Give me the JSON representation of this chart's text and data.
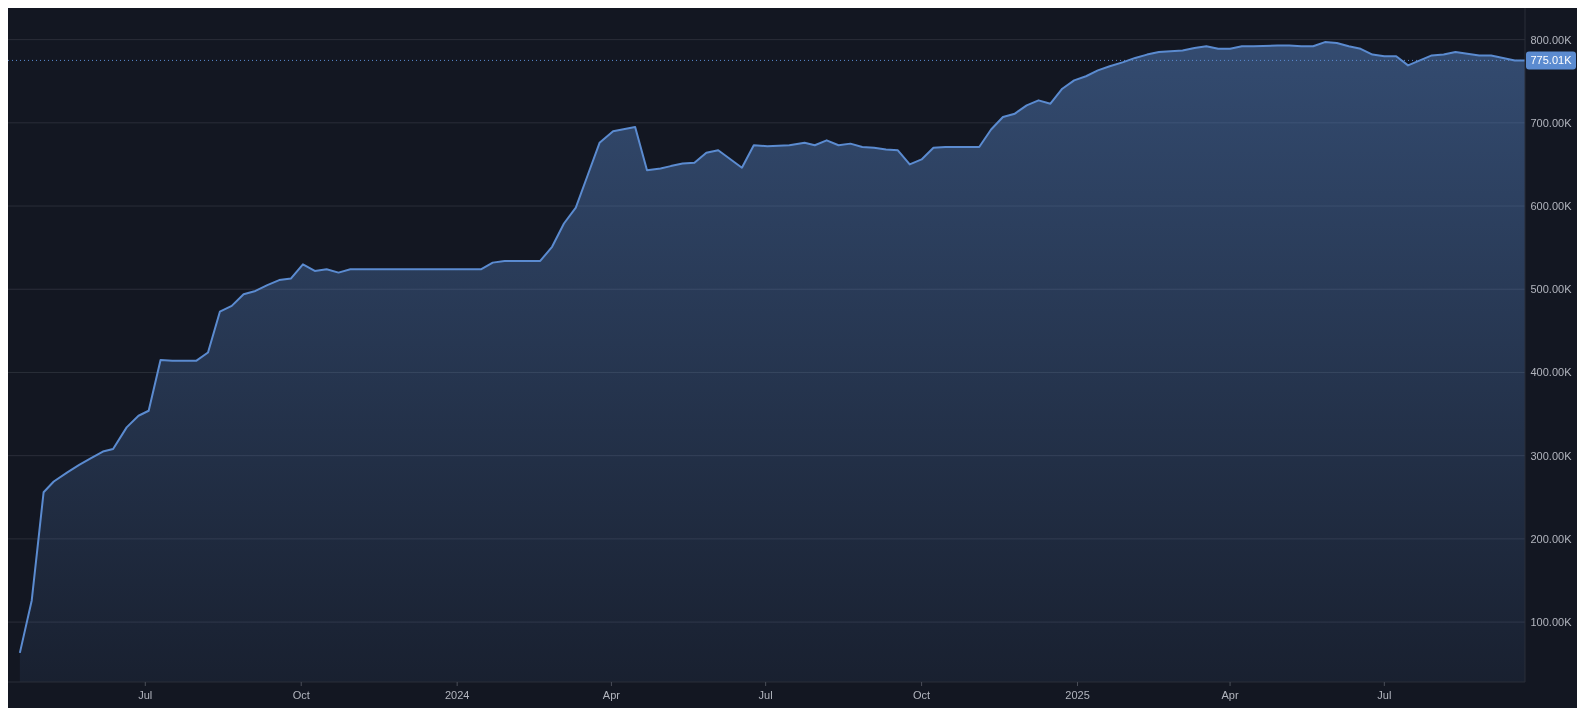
{
  "chart_data": {
    "type": "area",
    "x": [
      "2023-04-18",
      "2023-04-25",
      "2023-05-02",
      "2023-05-08",
      "2023-05-16",
      "2023-05-23",
      "2023-05-30",
      "2023-06-06",
      "2023-06-12",
      "2023-06-20",
      "2023-06-27",
      "2023-07-03",
      "2023-07-10",
      "2023-07-17",
      "2023-07-31",
      "2023-08-07",
      "2023-08-14",
      "2023-08-21",
      "2023-08-28",
      "2023-09-04",
      "2023-09-11",
      "2023-09-18",
      "2023-09-25",
      "2023-10-02",
      "2023-10-09",
      "2023-10-16",
      "2023-10-23",
      "2023-10-30",
      "2023-11-07",
      "2024-01-15",
      "2024-01-22",
      "2024-01-29",
      "2024-02-06",
      "2024-02-19",
      "2024-02-26",
      "2024-03-04",
      "2024-03-11",
      "2024-03-18",
      "2024-03-25",
      "2024-04-02",
      "2024-04-15",
      "2024-04-22",
      "2024-04-30",
      "2024-05-06",
      "2024-05-13",
      "2024-05-20",
      "2024-05-27",
      "2024-06-03",
      "2024-06-17",
      "2024-06-24",
      "2024-07-02",
      "2024-07-15",
      "2024-07-24",
      "2024-07-30",
      "2024-08-06",
      "2024-08-13",
      "2024-08-20",
      "2024-08-27",
      "2024-09-03",
      "2024-09-10",
      "2024-09-17",
      "2024-09-24",
      "2024-10-01",
      "2024-10-08",
      "2024-10-15",
      "2024-10-22",
      "2024-11-04",
      "2024-11-11",
      "2024-11-18",
      "2024-11-25",
      "2024-12-02",
      "2024-12-09",
      "2024-12-16",
      "2024-12-23",
      "2024-12-30",
      "2025-01-06",
      "2025-01-13",
      "2025-01-20",
      "2025-01-28",
      "2025-02-04",
      "2025-02-11",
      "2025-02-18",
      "2025-02-25",
      "2025-03-04",
      "2025-03-11",
      "2025-03-18",
      "2025-03-25",
      "2025-04-01",
      "2025-04-08",
      "2025-04-15",
      "2025-04-29",
      "2025-05-06",
      "2025-05-13",
      "2025-05-20",
      "2025-05-27",
      "2025-06-03",
      "2025-06-10",
      "2025-06-17",
      "2025-06-24",
      "2025-07-01",
      "2025-07-08",
      "2025-07-15",
      "2025-07-22",
      "2025-07-29",
      "2025-08-05",
      "2025-08-12",
      "2025-08-19",
      "2025-08-26",
      "2025-09-02",
      "2025-09-09",
      "2025-09-16",
      "2025-09-22"
    ],
    "series": [
      {
        "color": "#5b8bd0",
        "values": [
          63000,
          126000,
          256000,
          269000,
          280000,
          289000,
          297000,
          305000,
          308000,
          334000,
          348000,
          354000,
          415000,
          414000,
          414000,
          424000,
          473000,
          480000,
          494000,
          498000,
          505000,
          511000,
          513000,
          530000,
          522000,
          524000,
          520000,
          524000,
          524000,
          524000,
          532000,
          534000,
          534000,
          534000,
          551000,
          579000,
          598000,
          637000,
          676000,
          690000,
          695000,
          643000,
          645000,
          648000,
          651000,
          652000,
          664000,
          667000,
          646000,
          673000,
          672000,
          673000,
          676000,
          673000,
          679000,
          673000,
          675000,
          671000,
          670000,
          668000,
          667000,
          650000,
          656000,
          670000,
          671000,
          671000,
          671000,
          692000,
          707000,
          711000,
          721000,
          727000,
          723000,
          741000,
          751000,
          756000,
          763000,
          768000,
          773000,
          778000,
          782000,
          785000,
          786000,
          787000,
          790000,
          792000,
          789000,
          789000,
          792000,
          792000,
          793000,
          793000,
          792000,
          792000,
          797000,
          796000,
          792000,
          789000,
          782000,
          780000,
          780000,
          769000,
          775000,
          781000,
          782000,
          785000,
          783000,
          781000,
          781000,
          778000,
          775000,
          775000
        ]
      }
    ],
    "xlim": [
      "2023-04-11",
      "2025-09-22"
    ],
    "xticks": [
      {
        "value": "2023-07-01",
        "label": "Jul"
      },
      {
        "value": "2023-10-01",
        "label": "Oct"
      },
      {
        "value": "2024-01-01",
        "label": "2024"
      },
      {
        "value": "2024-04-01",
        "label": "Apr"
      },
      {
        "value": "2024-07-01",
        "label": "Jul"
      },
      {
        "value": "2024-10-01",
        "label": "Oct"
      },
      {
        "value": "2025-01-01",
        "label": "2025"
      },
      {
        "value": "2025-04-01",
        "label": "Apr"
      },
      {
        "value": "2025-07-01",
        "label": "Jul"
      }
    ],
    "ylim": [
      28000,
      838000
    ],
    "yticks": [
      {
        "value": 100000,
        "label": "100.00K"
      },
      {
        "value": 200000,
        "label": "200.00K"
      },
      {
        "value": 300000,
        "label": "300.00K"
      },
      {
        "value": 400000,
        "label": "400.00K"
      },
      {
        "value": 500000,
        "label": "500.00K"
      },
      {
        "value": 600000,
        "label": "600.00K"
      },
      {
        "value": 700000,
        "label": "700.00K"
      },
      {
        "value": 800000,
        "label": "800.00K"
      }
    ],
    "grid": "y",
    "ref_lines": [
      {
        "axis": "y",
        "value": 775010,
        "label": "775.01K",
        "color": "#5b8bd0",
        "line_style": "dotted"
      }
    ]
  }
}
